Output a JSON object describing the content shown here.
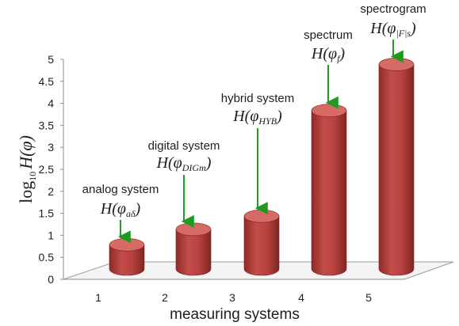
{
  "chart_data": {
    "type": "bar",
    "categories": [
      "1",
      "2",
      "3",
      "4",
      "5"
    ],
    "values": [
      0.75,
      1.1,
      1.4,
      3.8,
      4.85
    ],
    "yticks": [
      "0",
      "0.5",
      "1",
      "1.5",
      "2",
      "2.5",
      "3",
      "3.5",
      "4",
      "4.5",
      "5"
    ],
    "ylim": [
      0,
      5
    ],
    "xlabel": "measuring systems",
    "ylabel": "log10 H(φ)",
    "annotations": [
      {
        "label": "analog system",
        "formula": "H(φaδ)"
      },
      {
        "label": "digital system",
        "formula": "H(φDIGm)"
      },
      {
        "label": "hybrid system",
        "formula": "H(φHYB)"
      },
      {
        "label": "spectrum",
        "formula": "H(φf)"
      },
      {
        "label": "spectrogram",
        "formula": "H(φ|F|s)"
      }
    ],
    "grid": false,
    "legend": "none"
  },
  "colors": {
    "bar_body": "#b8423f",
    "bar_top": "#d86a66",
    "arrow": "#1f9a1f",
    "axis": "#8c8c8c"
  },
  "ylabel_parts": {
    "log": "log",
    "sub": "10",
    "expr": "H(φ)"
  },
  "formula_parts": [
    {
      "pre": "H(φ",
      "sub": "aδ",
      "post": ")"
    },
    {
      "pre": "H(φ",
      "sub": "DIGm",
      "post": ")"
    },
    {
      "pre": "H(φ",
      "sub": "HYB",
      "post": ")"
    },
    {
      "pre": "H(φ",
      "sub": "f",
      "post": ")"
    },
    {
      "pre": "H(φ",
      "sub": "|F|s",
      "post": ")"
    }
  ]
}
